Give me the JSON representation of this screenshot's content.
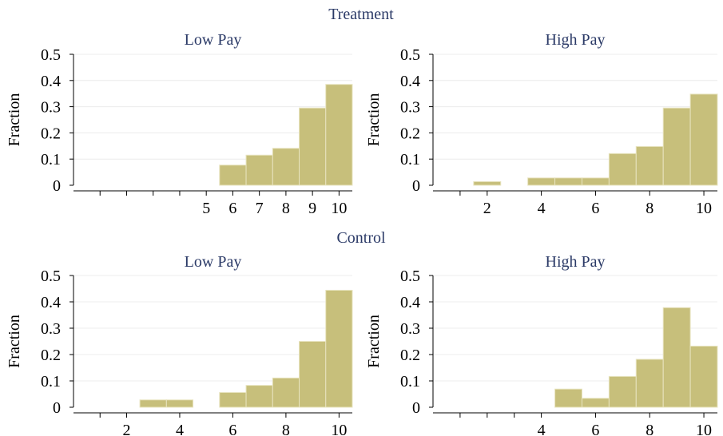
{
  "chart_data": {
    "type": "bar",
    "groups": [
      "Treatment",
      "Control"
    ],
    "panels": [
      {
        "group": "Treatment",
        "title": "Low Pay",
        "ylabel": "Fraction",
        "ylim": [
          0,
          0.5
        ],
        "yticks": [
          "0",
          "0.1",
          "0.2",
          "0.3",
          "0.4",
          "0.5"
        ],
        "xlim": [
          0,
          10.5
        ],
        "xticks": [
          1,
          2,
          3,
          4,
          5,
          6,
          7,
          8,
          9,
          10
        ],
        "xtick_labels": [
          "",
          "",
          "",
          "",
          "5",
          "6",
          "7",
          "8",
          "9",
          "10"
        ],
        "bins": [
          {
            "from": 5.5,
            "to": 6.5,
            "value": 0.077
          },
          {
            "from": 6.5,
            "to": 7.5,
            "value": 0.115
          },
          {
            "from": 7.5,
            "to": 8.5,
            "value": 0.141
          },
          {
            "from": 8.5,
            "to": 9.5,
            "value": 0.295
          },
          {
            "from": 9.5,
            "to": 10.5,
            "value": 0.385
          }
        ]
      },
      {
        "group": "Treatment",
        "title": "High Pay",
        "ylabel": "Fraction",
        "ylim": [
          0,
          0.5
        ],
        "yticks": [
          "0",
          "0.1",
          "0.2",
          "0.3",
          "0.4",
          "0.5"
        ],
        "xlim": [
          0,
          10.5
        ],
        "xticks": [
          1,
          2,
          4,
          6,
          8,
          10
        ],
        "xtick_labels": [
          "",
          "2",
          "4",
          "6",
          "8",
          "10"
        ],
        "bins": [
          {
            "from": 1.5,
            "to": 2.5,
            "value": 0.014
          },
          {
            "from": 3.5,
            "to": 4.5,
            "value": 0.028
          },
          {
            "from": 4.5,
            "to": 5.5,
            "value": 0.028
          },
          {
            "from": 5.5,
            "to": 6.5,
            "value": 0.028
          },
          {
            "from": 6.5,
            "to": 7.5,
            "value": 0.121
          },
          {
            "from": 7.5,
            "to": 8.5,
            "value": 0.148
          },
          {
            "from": 8.5,
            "to": 9.5,
            "value": 0.295
          },
          {
            "from": 9.5,
            "to": 10.5,
            "value": 0.348
          }
        ]
      },
      {
        "group": "Control",
        "title": "Low Pay",
        "ylabel": "Fraction",
        "ylim": [
          0,
          0.5
        ],
        "yticks": [
          "0",
          "0.1",
          "0.2",
          "0.3",
          "0.4",
          "0.5"
        ],
        "xlim": [
          0,
          10.5
        ],
        "xticks": [
          1,
          2,
          4,
          6,
          8,
          10
        ],
        "xtick_labels": [
          "",
          "2",
          "4",
          "6",
          "8",
          "10"
        ],
        "bins": [
          {
            "from": 2.5,
            "to": 3.5,
            "value": 0.028
          },
          {
            "from": 3.5,
            "to": 4.5,
            "value": 0.028
          },
          {
            "from": 5.5,
            "to": 6.5,
            "value": 0.056
          },
          {
            "from": 6.5,
            "to": 7.5,
            "value": 0.083
          },
          {
            "from": 7.5,
            "to": 8.5,
            "value": 0.111
          },
          {
            "from": 8.5,
            "to": 9.5,
            "value": 0.25
          },
          {
            "from": 9.5,
            "to": 10.5,
            "value": 0.444
          }
        ]
      },
      {
        "group": "Control",
        "title": "High Pay",
        "ylabel": "Fraction",
        "ylim": [
          0,
          0.5
        ],
        "yticks": [
          "0",
          "0.1",
          "0.2",
          "0.3",
          "0.4",
          "0.5"
        ],
        "xlim": [
          0,
          10.5
        ],
        "xticks": [
          1,
          2,
          3,
          4,
          6,
          8,
          10
        ],
        "xtick_labels": [
          "",
          "",
          "",
          "4",
          "6",
          "8",
          "10"
        ],
        "bins": [
          {
            "from": 4.5,
            "to": 5.5,
            "value": 0.069
          },
          {
            "from": 5.5,
            "to": 6.5,
            "value": 0.034
          },
          {
            "from": 6.5,
            "to": 7.5,
            "value": 0.117
          },
          {
            "from": 7.5,
            "to": 8.5,
            "value": 0.182
          },
          {
            "from": 8.5,
            "to": 9.5,
            "value": 0.378
          },
          {
            "from": 9.5,
            "to": 10.5,
            "value": 0.232
          }
        ]
      }
    ]
  }
}
